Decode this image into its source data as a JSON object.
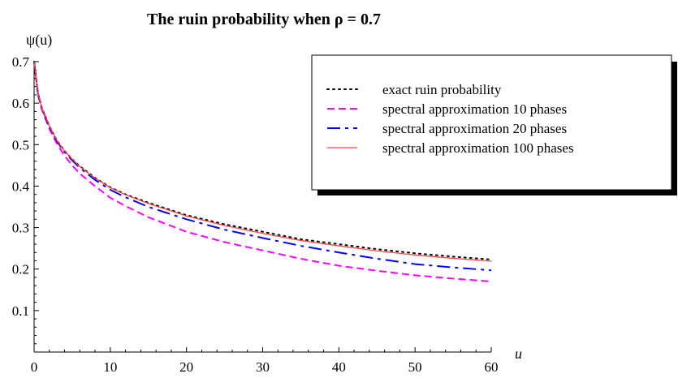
{
  "chart_data": {
    "type": "line",
    "title": "The ruin probability when ρ = 0.7",
    "xlabel": "u",
    "ylabel": "ψ(u)",
    "xlim": [
      0,
      60
    ],
    "ylim": [
      0,
      0.7
    ],
    "xticks": [
      0,
      10,
      20,
      30,
      40,
      50,
      60
    ],
    "yticks": [
      0.1,
      0.2,
      0.3,
      0.4,
      0.5,
      0.6,
      0.7
    ],
    "grid": false,
    "legend_position": "top-right",
    "x": [
      0,
      0.5,
      1,
      2,
      3,
      4,
      5,
      6,
      8,
      10,
      12,
      15,
      20,
      25,
      30,
      35,
      40,
      45,
      50,
      55,
      60
    ],
    "series": [
      {
        "name": "exact ruin probability",
        "color": "#000000",
        "style": "dotted",
        "values": [
          0.7,
          0.625,
          0.59,
          0.545,
          0.51,
          0.485,
          0.465,
          0.448,
          0.42,
          0.397,
          0.38,
          0.36,
          0.33,
          0.308,
          0.29,
          0.272,
          0.26,
          0.248,
          0.238,
          0.23,
          0.223
        ]
      },
      {
        "name": "spectral approximation 10 phases",
        "color": "#ff00ff",
        "style": "dashed",
        "values": [
          0.7,
          0.62,
          0.585,
          0.538,
          0.502,
          0.473,
          0.45,
          0.43,
          0.4,
          0.372,
          0.352,
          0.325,
          0.29,
          0.265,
          0.245,
          0.225,
          0.208,
          0.196,
          0.185,
          0.177,
          0.17
        ]
      },
      {
        "name": "spectral approximation 20 phases",
        "color": "#0000ff",
        "style": "dashdot",
        "values": [
          0.7,
          0.624,
          0.589,
          0.543,
          0.508,
          0.482,
          0.462,
          0.444,
          0.415,
          0.391,
          0.373,
          0.35,
          0.32,
          0.295,
          0.275,
          0.256,
          0.24,
          0.225,
          0.212,
          0.204,
          0.197
        ]
      },
      {
        "name": "spectral approximation 100 phases",
        "color": "#ff4444",
        "style": "solid",
        "values": [
          0.7,
          0.625,
          0.59,
          0.545,
          0.51,
          0.485,
          0.465,
          0.447,
          0.419,
          0.396,
          0.379,
          0.358,
          0.328,
          0.305,
          0.286,
          0.269,
          0.256,
          0.244,
          0.234,
          0.226,
          0.219
        ]
      }
    ]
  }
}
